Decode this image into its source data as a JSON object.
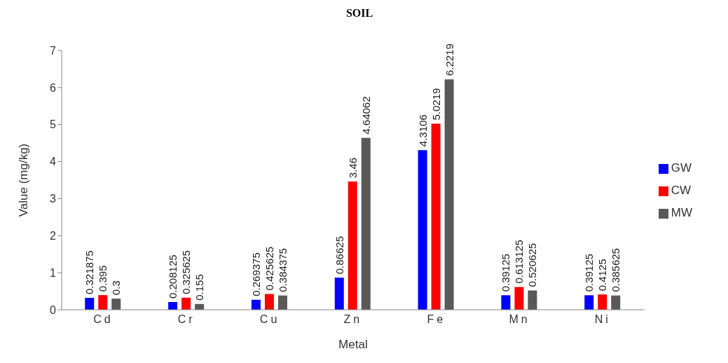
{
  "chart_data": {
    "type": "bar",
    "title": "SOIL",
    "xlabel": "Metal",
    "ylabel": "Value (mg/kg)",
    "categories": [
      "Cd",
      "Cr",
      "Cu",
      "Zn",
      "Fe",
      "Mn",
      "Ni"
    ],
    "series": [
      {
        "name": "GW",
        "color": "#0000ff",
        "values": [
          0.321875,
          0.208125,
          0.269375,
          0.86625,
          4.3106,
          0.39125,
          0.39125
        ]
      },
      {
        "name": "CW",
        "color": "#ff0000",
        "values": [
          0.395,
          0.325625,
          0.425625,
          3.46,
          5.0219,
          0.613125,
          0.4125
        ]
      },
      {
        "name": "MW",
        "color": "#595959",
        "values": [
          0.3,
          0.155,
          0.384375,
          4.64062,
          6.2219,
          0.520625,
          0.385625
        ]
      }
    ],
    "ylim": [
      0,
      7
    ],
    "yticks": [
      0,
      1,
      2,
      3,
      4,
      5,
      6,
      7
    ],
    "data_labels": true,
    "legend": "right"
  }
}
